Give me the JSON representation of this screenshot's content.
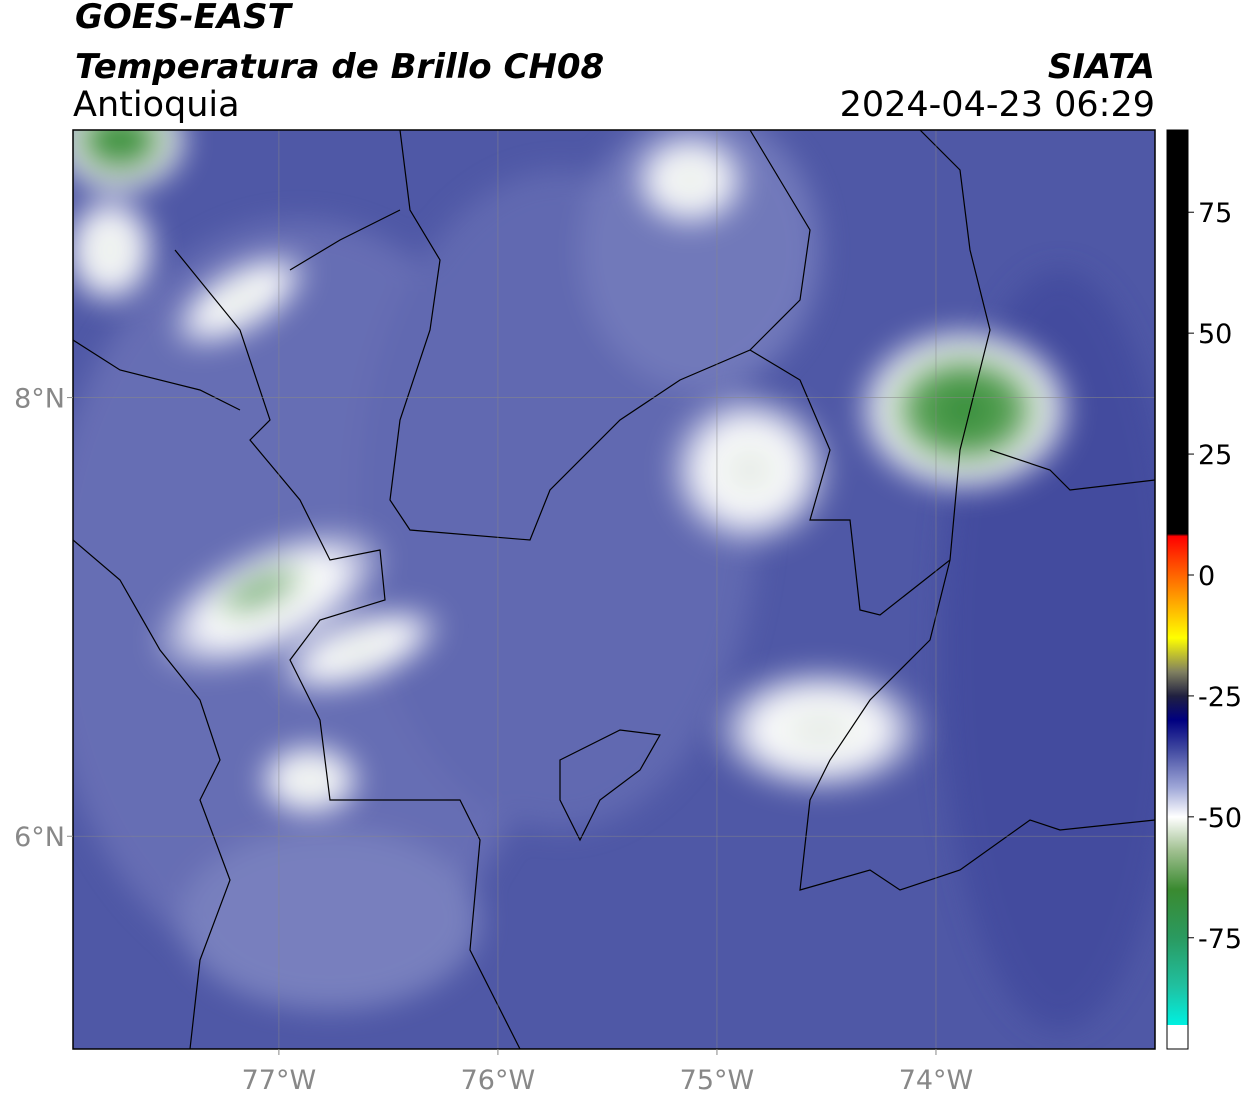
{
  "chart_data": {
    "type": "map",
    "title": "GOES-EAST",
    "subtitle": "Temperatura de Brillo CH08",
    "region": "Antioquia",
    "source": "SIATA",
    "datetime": "2024-04-23 06:29",
    "xlim": [
      -77.94,
      -73.0
    ],
    "ylim": [
      5.03,
      9.22
    ],
    "xticks": [
      {
        "value": -77,
        "label": "77°W"
      },
      {
        "value": -76,
        "label": "76°W"
      },
      {
        "value": -75,
        "label": "75°W"
      },
      {
        "value": -74,
        "label": "74°W"
      }
    ],
    "yticks": [
      {
        "value": 8,
        "label": "8°N"
      },
      {
        "value": 6,
        "label": "6°N"
      }
    ],
    "grid": true,
    "colorbar": {
      "lim": [
        -98,
        92
      ],
      "ticks": [
        75,
        50,
        25,
        0,
        -25,
        -50,
        -75
      ],
      "stops": [
        {
          "value": -98,
          "color": "#ffffff"
        },
        {
          "value": -93,
          "color": "#ffffff"
        },
        {
          "value": -93,
          "color": "#00f0e0"
        },
        {
          "value": -85,
          "color": "#20c0a0"
        },
        {
          "value": -75,
          "color": "#2a9a60"
        },
        {
          "value": -65,
          "color": "#3a8a30"
        },
        {
          "value": -57,
          "color": "#a0c090"
        },
        {
          "value": -50,
          "color": "#ffffff"
        },
        {
          "value": -44,
          "color": "#a0a8d8"
        },
        {
          "value": -36,
          "color": "#4048a0"
        },
        {
          "value": -30,
          "color": "#000080"
        },
        {
          "value": -25,
          "color": "#202040"
        },
        {
          "value": -20,
          "color": "#808060"
        },
        {
          "value": -13,
          "color": "#ffff00"
        },
        {
          "value": -5,
          "color": "#ffa000"
        },
        {
          "value": 3,
          "color": "#ff4000"
        },
        {
          "value": 8,
          "color": "#ff0000"
        },
        {
          "value": 8.5,
          "color": "#000000"
        },
        {
          "value": 92,
          "color": "#000000"
        }
      ]
    }
  }
}
